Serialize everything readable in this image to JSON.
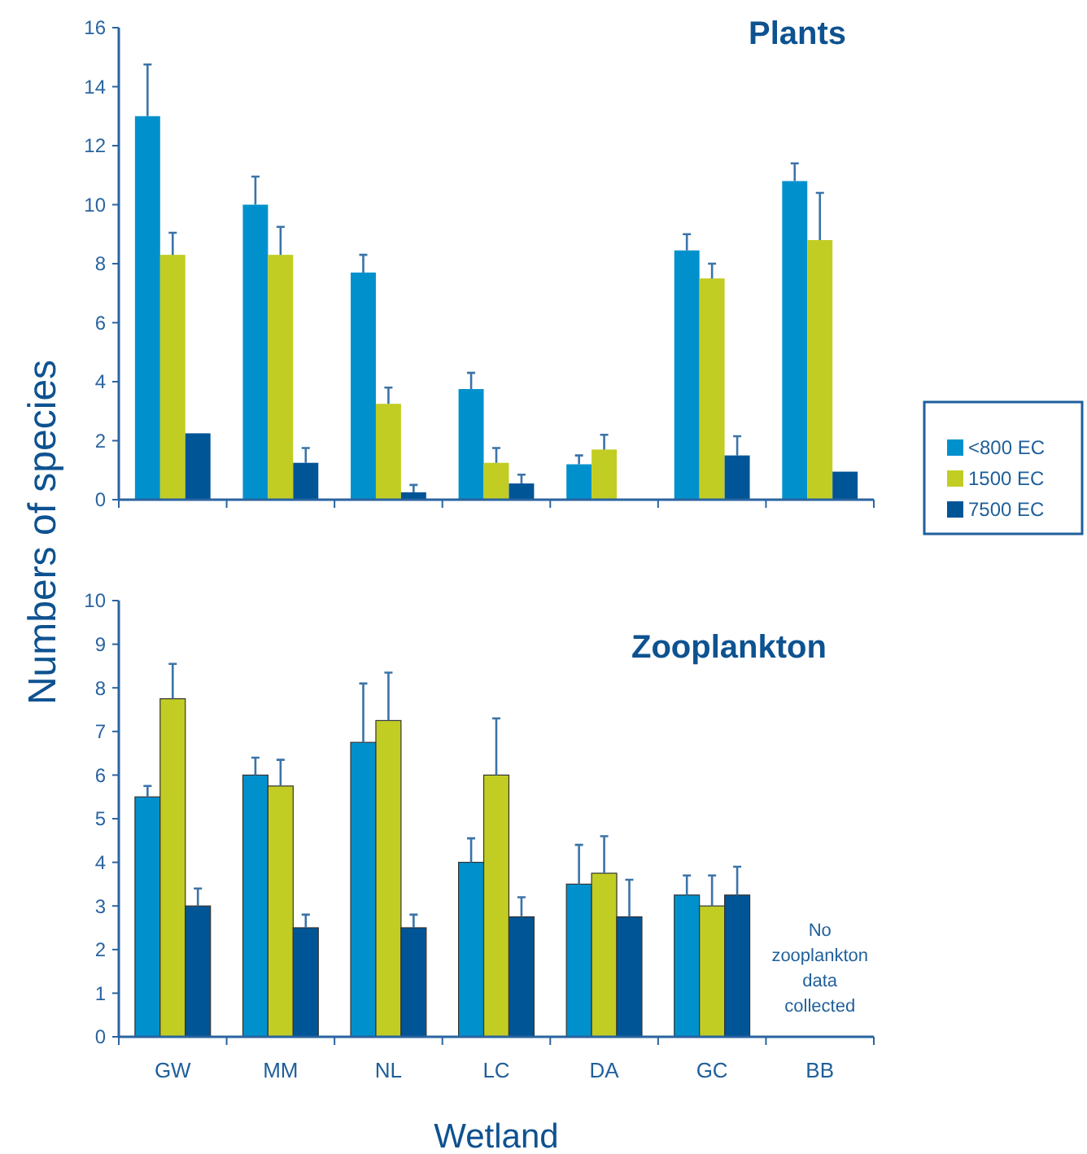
{
  "chart_data": [
    {
      "type": "bar",
      "title": "Plants",
      "ylabel": "Numbers of species",
      "categories": [
        null,
        null,
        null,
        null,
        null,
        null,
        null
      ],
      "ylim": [
        0,
        16
      ],
      "yticks": [
        0,
        2,
        4,
        6,
        8,
        10,
        12,
        14,
        16
      ],
      "tick_labels": "y",
      "legend": "right",
      "grid": false,
      "series": [
        {
          "name": "<800 EC",
          "color": "#0091cd",
          "values": [
            13,
            10,
            7.7,
            3.75,
            1.2,
            8.45,
            10.8
          ],
          "errors": [
            [
              13,
              14.75
            ],
            [
              10,
              10.95
            ],
            [
              7.7,
              8.3
            ],
            [
              3.75,
              4.3
            ],
            [
              1.2,
              1.5
            ],
            [
              8.45,
              9.0
            ],
            [
              10.8,
              11.4
            ]
          ]
        },
        {
          "name": "1500 EC",
          "color": "#c1cd23",
          "values": [
            8.3,
            8.3,
            3.25,
            1.25,
            1.7,
            7.5,
            8.8
          ],
          "errors": [
            [
              8.3,
              9.05
            ],
            [
              8.3,
              9.25
            ],
            [
              3.25,
              3.8
            ],
            [
              1.25,
              1.75
            ],
            [
              1.7,
              2.2
            ],
            [
              7.5,
              8.0
            ],
            [
              8.8,
              10.4
            ]
          ]
        },
        {
          "name": "7500 EC",
          "color": "#005596",
          "values": [
            2.25,
            1.25,
            0.25,
            0.55,
            null,
            1.5,
            0.95
          ],
          "errors": [
            null,
            [
              1.25,
              1.75
            ],
            [
              0.25,
              0.5
            ],
            [
              0.55,
              0.85
            ],
            null,
            [
              1.5,
              2.15
            ],
            null
          ]
        }
      ]
    },
    {
      "type": "bar",
      "title": "Zooplankton",
      "xlabel": "Wetland",
      "categories": [
        "GW",
        "MM",
        "NL",
        "LC",
        "DA",
        "GC",
        "BB"
      ],
      "ylim": [
        0,
        10
      ],
      "yticks": [
        0,
        1,
        2,
        3,
        4,
        5,
        6,
        7,
        8,
        9,
        10
      ],
      "grid": false,
      "annotations": [
        "No zooplankton data collected"
      ],
      "series": [
        {
          "color": "#0091cd",
          "values": [
            5.5,
            6,
            6.75,
            4,
            3.5,
            3.25,
            null
          ],
          "errors": [
            [
              5.5,
              5.75
            ],
            [
              6,
              6.4
            ],
            [
              6.75,
              8.1
            ],
            [
              4,
              4.55
            ],
            [
              3.5,
              4.4
            ],
            [
              3.25,
              3.7
            ],
            null
          ]
        },
        {
          "color": "#c1cd23",
          "values": [
            7.75,
            5.75,
            7.25,
            6,
            3.75,
            3,
            null
          ],
          "errors": [
            [
              7.75,
              8.55
            ],
            [
              5.75,
              6.35
            ],
            [
              7.25,
              8.35
            ],
            [
              6,
              7.3
            ],
            [
              3.75,
              4.6
            ],
            [
              3,
              3.7
            ],
            null
          ]
        },
        {
          "color": "#005596",
          "values": [
            3,
            2.5,
            2.5,
            2.75,
            2.75,
            3.25,
            null
          ],
          "errors": [
            [
              3,
              3.4
            ],
            [
              2.5,
              2.8
            ],
            [
              2.5,
              2.8
            ],
            [
              2.75,
              3.2
            ],
            [
              2.75,
              3.6
            ],
            [
              3.25,
              3.9
            ],
            null
          ]
        }
      ]
    }
  ]
}
